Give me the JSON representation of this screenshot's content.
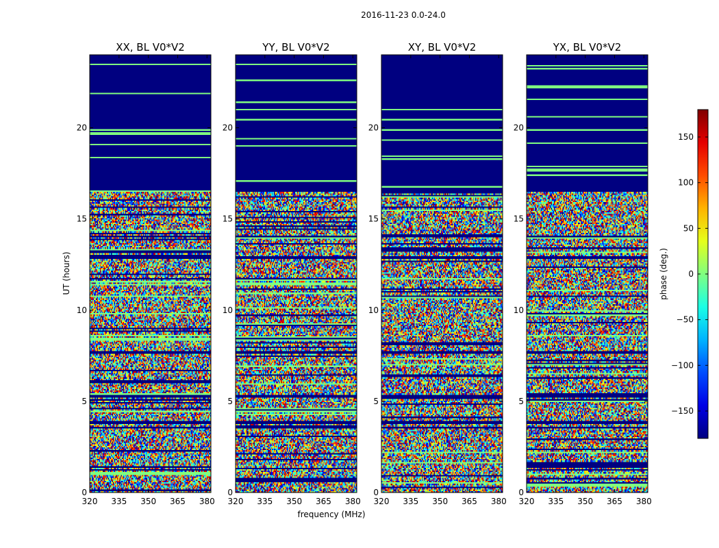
{
  "chart_data": {
    "type": "heatmap",
    "title": "2016-11-23 0.0-24.0",
    "xlabel": "frequency (MHz)",
    "ylabel": "UT (hours)",
    "xlim": [
      320,
      382
    ],
    "ylim": [
      0,
      24
    ],
    "xticks": [
      "320",
      "335",
      "350",
      "365",
      "380"
    ],
    "yticks": [
      "0",
      "5",
      "10",
      "15",
      "20"
    ],
    "colormap": "jet",
    "colorbar": {
      "label": "phase (deg.)",
      "range": [
        -180,
        180
      ],
      "ticks": [
        "−150",
        "−100",
        "−50",
        "0",
        "50",
        "100",
        "150"
      ]
    },
    "panels": [
      {
        "title": "XX, BL V0*V2"
      },
      {
        "title": "YY, BL V0*V2"
      },
      {
        "title": "XY, BL V0*V2"
      },
      {
        "title": "YX, BL V0*V2"
      }
    ],
    "flagged_value_deg": -180,
    "flagged_ut_ranges": [
      [
        16.5,
        24.0
      ],
      [
        14.0,
        14.1
      ],
      [
        12.8,
        12.95
      ],
      [
        7.6,
        7.75
      ],
      [
        5.2,
        5.35
      ],
      [
        3.8,
        3.95
      ],
      [
        3.5,
        3.6
      ]
    ]
  }
}
